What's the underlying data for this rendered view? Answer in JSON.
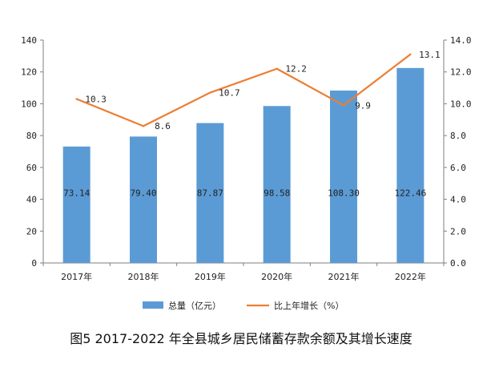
{
  "chart_data": {
    "type": "bar",
    "title": "图5 2017-2022 年全县城乡居民储蓄存款余额及其增长速度",
    "categories": [
      "2017年",
      "2018年",
      "2019年",
      "2020年",
      "2021年",
      "2022年"
    ],
    "series": [
      {
        "name": "总量（亿元）",
        "type": "bar",
        "axis": "left",
        "color": "#5b9bd5",
        "values": [
          73.14,
          79.4,
          87.87,
          98.58,
          108.3,
          122.46
        ],
        "labels": [
          "73.14",
          "79.40",
          "87.87",
          "98.58",
          "108.30",
          "122.46"
        ]
      },
      {
        "name": "比上年增长（%）",
        "type": "line",
        "axis": "right",
        "color": "#ed7d31",
        "values": [
          10.3,
          8.6,
          10.7,
          12.2,
          9.9,
          13.1
        ],
        "labels": [
          "10.3",
          "8.6",
          "10.7",
          "12.2",
          "9.9",
          "13.1"
        ]
      }
    ],
    "y_left": {
      "min": 0,
      "max": 140,
      "step": 20,
      "ticks": [
        "0",
        "20",
        "40",
        "60",
        "80",
        "100",
        "120",
        "140"
      ]
    },
    "y_right": {
      "min": 0,
      "max": 14,
      "step": 2,
      "ticks": [
        "0.0",
        "2.0",
        "4.0",
        "6.0",
        "8.0",
        "10.0",
        "12.0",
        "14.0"
      ]
    },
    "grid": false,
    "legend": "bottom"
  }
}
